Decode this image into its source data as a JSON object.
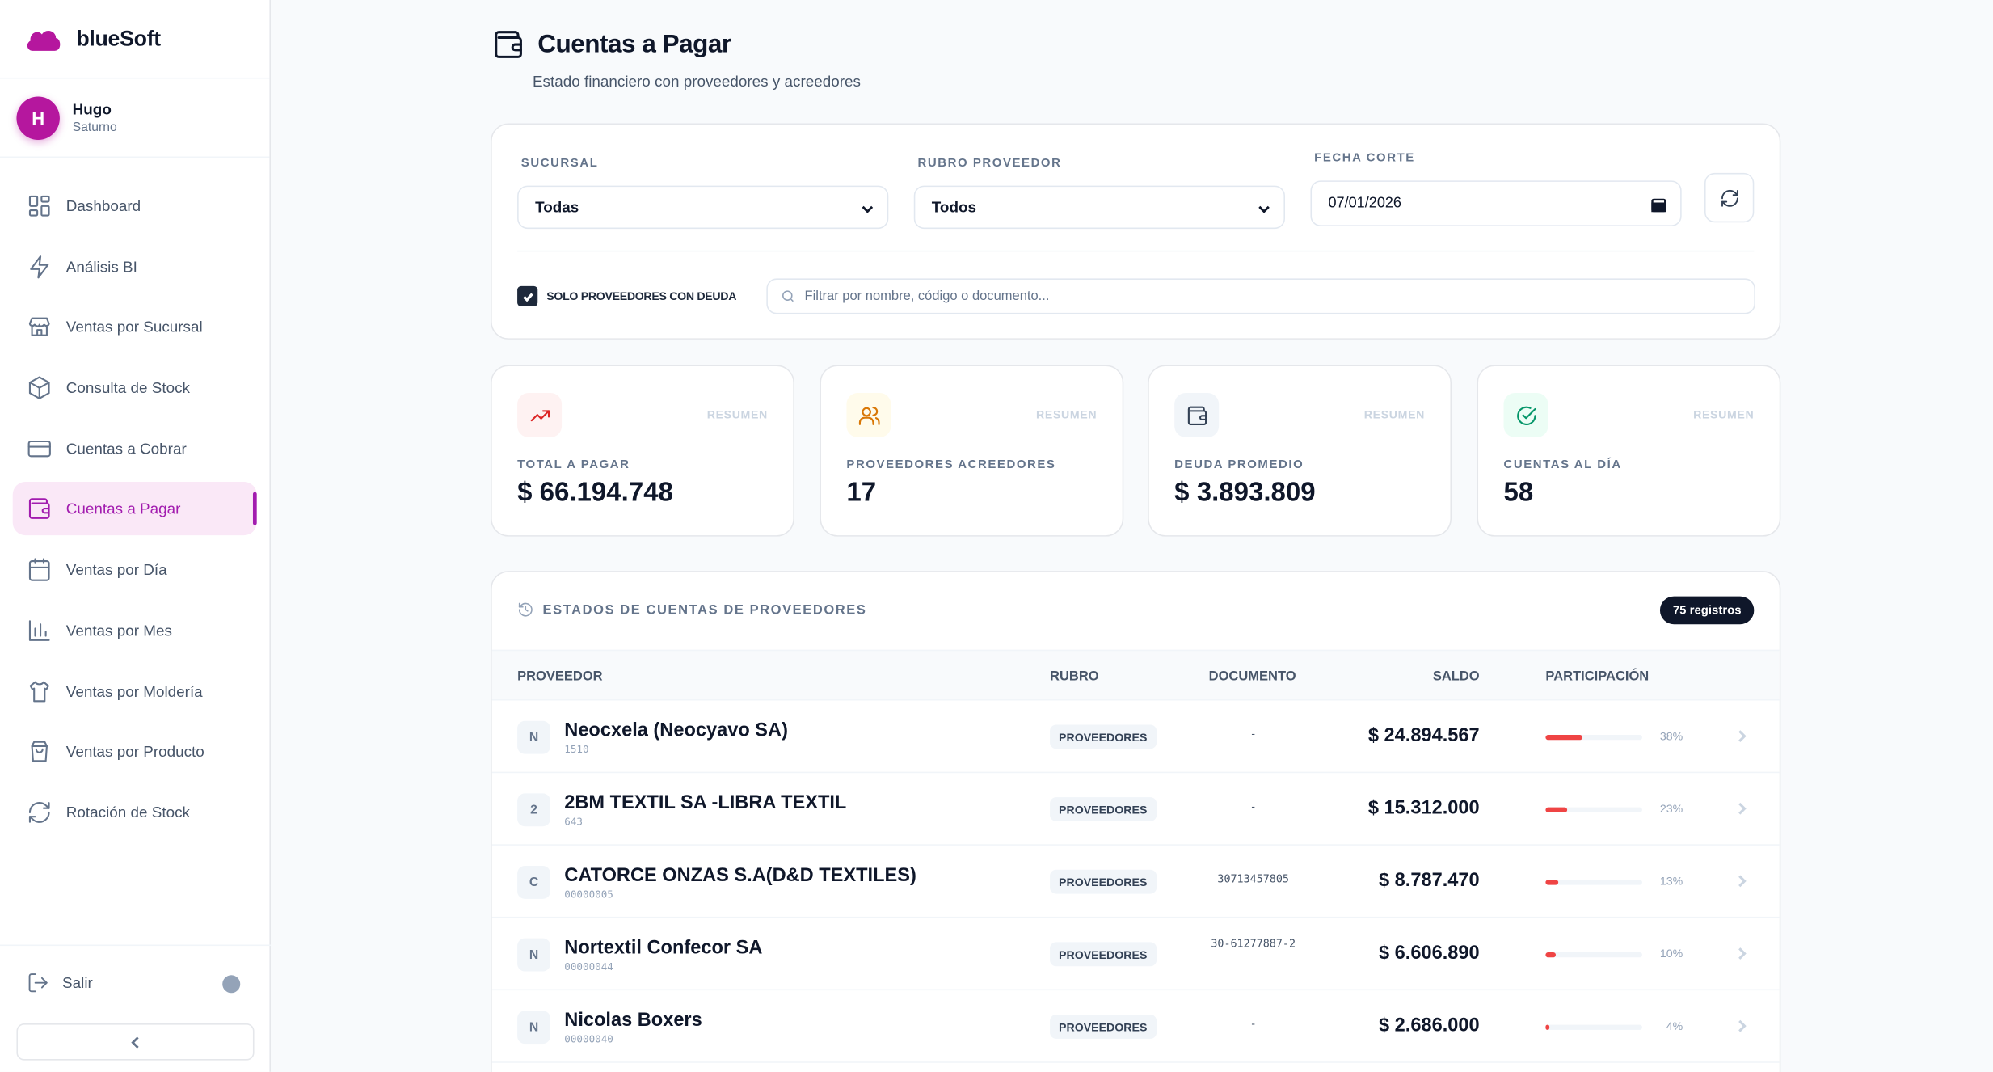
{
  "brand": {
    "name": "blueSoft",
    "icon": "cloud-icon",
    "color": "#b5179e"
  },
  "user": {
    "initial": "H",
    "name": "Hugo",
    "subtitle": "Saturno"
  },
  "sidebar": {
    "items": [
      {
        "label": "Dashboard",
        "icon": "dashboard-icon"
      },
      {
        "label": "Análisis BI",
        "icon": "lightning-icon"
      },
      {
        "label": "Ventas por Sucursal",
        "icon": "store-icon"
      },
      {
        "label": "Consulta de Stock",
        "icon": "box-icon"
      },
      {
        "label": "Cuentas a Cobrar",
        "icon": "credit-card-icon"
      },
      {
        "label": "Cuentas a Pagar",
        "icon": "wallet-icon",
        "active": true
      },
      {
        "label": "Ventas por Día",
        "icon": "calendar-icon"
      },
      {
        "label": "Ventas por Mes",
        "icon": "bar-chart-icon"
      },
      {
        "label": "Ventas por Moldería",
        "icon": "shirt-icon"
      },
      {
        "label": "Ventas por Producto",
        "icon": "shopping-bag-icon"
      },
      {
        "label": "Rotación de Stock",
        "icon": "refresh-icon"
      }
    ],
    "logout_label": "Salir"
  },
  "page": {
    "title": "Cuentas a Pagar",
    "subtitle": "Estado financiero con proveedores y acreedores"
  },
  "filters": {
    "sucursal_label": "SUCURSAL",
    "sucursal_value": "Todas",
    "rubro_label": "RUBRO PROVEEDOR",
    "rubro_value": "Todos",
    "fecha_label": "FECHA CORTE",
    "fecha_value": "07/01/2026",
    "solo_deuda_label": "SOLO PROVEEDORES CON DEUDA",
    "solo_deuda_checked": true,
    "search_placeholder": "Filtrar por nombre, código o documento..."
  },
  "kpis": [
    {
      "tag": "RESUMEN",
      "label": "TOTAL A PAGAR",
      "value": "$ 66.194.748",
      "icon": "trending-up-icon",
      "color": "#dc2626",
      "bg": "#fef2f2"
    },
    {
      "tag": "RESUMEN",
      "label": "PROVEEDORES ACREEDORES",
      "value": "17",
      "icon": "users-icon",
      "color": "#d97706",
      "bg": "#fffbeb"
    },
    {
      "tag": "RESUMEN",
      "label": "DEUDA PROMEDIO",
      "value": "$ 3.893.809",
      "icon": "wallet-icon",
      "color": "#334155",
      "bg": "#f1f5f9"
    },
    {
      "tag": "RESUMEN",
      "label": "CUENTAS AL DÍA",
      "value": "58",
      "icon": "check-circle-icon",
      "color": "#059669",
      "bg": "#ecfdf5"
    }
  ],
  "table": {
    "title": "ESTADOS DE CUENTAS DE PROVEEDORES",
    "badge": "75 registros",
    "columns": {
      "proveedor": "PROVEEDOR",
      "rubro": "RUBRO",
      "documento": "DOCUMENTO",
      "saldo": "SALDO",
      "participacion": "PARTICIPACIÓN"
    },
    "rows": [
      {
        "initial": "N",
        "name": "Neocxela (Neocyavo SA)",
        "code": "1510",
        "rubro": "PROVEEDORES",
        "documento": "-",
        "saldo": "$ 24.894.567",
        "pct_label": "38%",
        "pct": 38
      },
      {
        "initial": "2",
        "name": "2BM TEXTIL SA -LIBRA TEXTIL",
        "code": "643",
        "rubro": "PROVEEDORES",
        "documento": "-",
        "saldo": "$ 15.312.000",
        "pct_label": "23%",
        "pct": 23
      },
      {
        "initial": "C",
        "name": "CATORCE ONZAS S.A(D&D TEXTILES)",
        "code": "00000005",
        "rubro": "PROVEEDORES",
        "documento": "30713457805",
        "saldo": "$ 8.787.470",
        "pct_label": "13%",
        "pct": 13
      },
      {
        "initial": "N",
        "name": "Nortextil Confecor SA",
        "code": "00000044",
        "rubro": "PROVEEDORES",
        "documento": "30-61277887-2",
        "saldo": "$ 6.606.890",
        "pct_label": "10%",
        "pct": 10
      },
      {
        "initial": "N",
        "name": "Nicolas Boxers",
        "code": "00000040",
        "rubro": "PROVEEDORES",
        "documento": "-",
        "saldo": "$ 2.686.000",
        "pct_label": "4%",
        "pct": 4
      }
    ]
  }
}
